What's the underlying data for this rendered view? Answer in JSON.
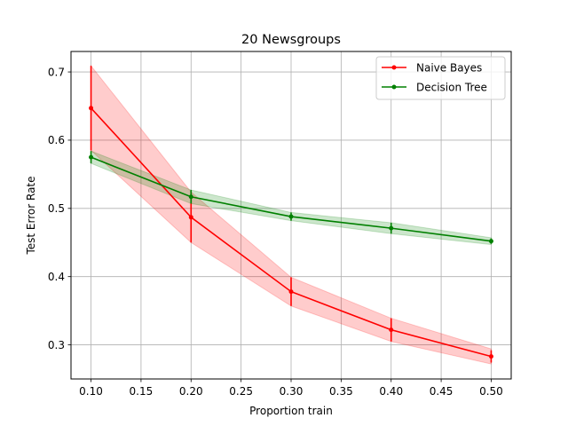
{
  "chart_data": {
    "type": "line",
    "title": "20 Newsgroups",
    "xlabel": "Proportion train",
    "ylabel": "Test Error Rate",
    "x": [
      0.1,
      0.2,
      0.3,
      0.4,
      0.5
    ],
    "xlim": [
      0.08,
      0.52
    ],
    "ylim": [
      0.25,
      0.73
    ],
    "xticks": [
      "0.10",
      "0.15",
      "0.20",
      "0.25",
      "0.30",
      "0.35",
      "0.40",
      "0.45",
      "0.50"
    ],
    "yticks": [
      "0.3",
      "0.4",
      "0.5",
      "0.6",
      "0.7"
    ],
    "grid": true,
    "legend_position": "top-right",
    "series": [
      {
        "name": "Naive Bayes",
        "color": "#ff0000",
        "band_color": "#ff0000",
        "values": [
          0.647,
          0.487,
          0.378,
          0.322,
          0.283
        ],
        "err_low": [
          0.585,
          0.45,
          0.357,
          0.305,
          0.274
        ],
        "err_high": [
          0.709,
          0.524,
          0.399,
          0.339,
          0.292
        ],
        "band_low": [
          0.585,
          0.45,
          0.357,
          0.305,
          0.272
        ],
        "band_high": [
          0.709,
          0.524,
          0.399,
          0.339,
          0.294
        ]
      },
      {
        "name": "Decision Tree",
        "color": "#008000",
        "band_color": "#008000",
        "values": [
          0.575,
          0.517,
          0.488,
          0.471,
          0.452
        ],
        "err_low": [
          0.566,
          0.507,
          0.482,
          0.463,
          0.448
        ],
        "err_high": [
          0.584,
          0.527,
          0.494,
          0.479,
          0.456
        ],
        "band_low": [
          0.566,
          0.507,
          0.482,
          0.463,
          0.447
        ],
        "band_high": [
          0.584,
          0.527,
          0.494,
          0.479,
          0.457
        ]
      }
    ]
  }
}
